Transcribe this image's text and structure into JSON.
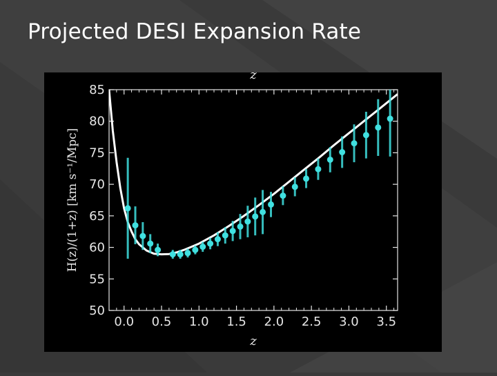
{
  "slide": {
    "title": "Projected DESI Expansion Rate",
    "colors": {
      "background": "#3a3a3a",
      "panel": "#000000",
      "curve": "#ffffff",
      "points": "#40e0e0",
      "text": "#ffffff"
    }
  },
  "chart_data": {
    "type": "line",
    "title": "",
    "top_axis_label": "z",
    "xlabel": "z",
    "ylabel": "H(z)/(1+z) [km s⁻¹/Mpc]",
    "xlim": [
      -0.2,
      3.65
    ],
    "ylim": [
      50,
      85
    ],
    "x_ticks": [
      0.0,
      0.5,
      1.0,
      1.5,
      2.0,
      2.5,
      3.0,
      3.5
    ],
    "x_tick_labels": [
      "0.0",
      "0.5",
      "1.0",
      "1.5",
      "2.0",
      "2.5",
      "3.0",
      "3.5"
    ],
    "y_ticks": [
      50,
      55,
      60,
      65,
      70,
      75,
      80,
      85
    ],
    "y_tick_labels": [
      "50",
      "55",
      "60",
      "65",
      "70",
      "75",
      "80",
      "85"
    ],
    "grid": false,
    "series": [
      {
        "kind": "model_curve",
        "x": [
          -0.2,
          -0.15,
          -0.1,
          -0.05,
          0.0,
          0.05,
          0.1,
          0.15,
          0.2,
          0.3,
          0.4,
          0.5,
          0.6,
          0.7,
          0.8,
          0.9,
          1.0,
          1.2,
          1.4,
          1.6,
          1.8,
          2.0,
          2.2,
          2.4,
          2.6,
          2.8,
          3.0,
          3.2,
          3.4,
          3.65
        ],
        "y": [
          85.0,
          78.5,
          73.5,
          69.4,
          66.2,
          64.0,
          62.5,
          61.3,
          60.5,
          59.5,
          59.0,
          58.9,
          58.95,
          59.2,
          59.6,
          60.1,
          60.6,
          61.9,
          63.4,
          65.0,
          66.7,
          68.5,
          70.4,
          72.3,
          74.2,
          76.2,
          78.1,
          80.0,
          81.9,
          84.3
        ]
      },
      {
        "kind": "measurements",
        "points": [
          {
            "x": 0.05,
            "y": 66.2,
            "err": 8.0
          },
          {
            "x": 0.15,
            "y": 63.5,
            "err": 3.0
          },
          {
            "x": 0.25,
            "y": 61.8,
            "err": 2.2
          },
          {
            "x": 0.35,
            "y": 60.6,
            "err": 1.5
          },
          {
            "x": 0.45,
            "y": 59.6,
            "err": 1.0
          },
          {
            "x": 0.65,
            "y": 58.9,
            "err": 0.7
          },
          {
            "x": 0.75,
            "y": 58.9,
            "err": 0.7
          },
          {
            "x": 0.85,
            "y": 59.1,
            "err": 0.7
          },
          {
            "x": 0.95,
            "y": 59.6,
            "err": 0.7
          },
          {
            "x": 1.05,
            "y": 60.1,
            "err": 0.8
          },
          {
            "x": 1.15,
            "y": 60.6,
            "err": 0.9
          },
          {
            "x": 1.25,
            "y": 61.3,
            "err": 1.1
          },
          {
            "x": 1.35,
            "y": 61.9,
            "err": 1.3
          },
          {
            "x": 1.45,
            "y": 62.6,
            "err": 1.6
          },
          {
            "x": 1.55,
            "y": 63.3,
            "err": 2.0
          },
          {
            "x": 1.65,
            "y": 64.1,
            "err": 2.5
          },
          {
            "x": 1.75,
            "y": 64.9,
            "err": 3.0
          },
          {
            "x": 1.85,
            "y": 65.6,
            "err": 3.5
          },
          {
            "x": 1.96,
            "y": 66.8,
            "err": 2.0
          },
          {
            "x": 2.12,
            "y": 68.2,
            "err": 1.5
          },
          {
            "x": 2.28,
            "y": 69.6,
            "err": 1.5
          },
          {
            "x": 2.43,
            "y": 70.9,
            "err": 1.5
          },
          {
            "x": 2.59,
            "y": 72.4,
            "err": 1.7
          },
          {
            "x": 2.75,
            "y": 73.9,
            "err": 2.0
          },
          {
            "x": 2.91,
            "y": 75.1,
            "err": 2.5
          },
          {
            "x": 3.07,
            "y": 76.5,
            "err": 3.0
          },
          {
            "x": 3.23,
            "y": 77.8,
            "err": 3.7
          },
          {
            "x": 3.39,
            "y": 79.0,
            "err": 4.5
          },
          {
            "x": 3.55,
            "y": 80.4,
            "err": 6.0
          }
        ]
      }
    ]
  }
}
